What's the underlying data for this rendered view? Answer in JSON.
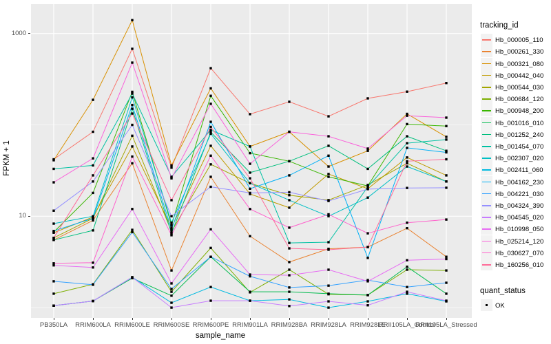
{
  "figure": {
    "background": "#FFFFFF",
    "panel_background": "#EBEBEB",
    "gridline_color": "#FFFFFF",
    "point_color": "#000000"
  },
  "axes": {
    "y_title": "FPKM + 1",
    "x_title": "sample_name",
    "y_tick_labels": [
      "1000",
      "10"
    ],
    "y_tick_values": [
      1000,
      10
    ],
    "y_minor_values": [
      100,
      1
    ]
  },
  "legend": {
    "tracking_title": "tracking_id",
    "quant_title": "quant_status",
    "quant_label": "OK"
  },
  "chart_data": {
    "type": "line",
    "x_type": "categorical",
    "y_scale": "log10",
    "ylabel": "FPKM + 1",
    "xlabel": "sample_name",
    "ylim": [
      0.77,
      2000
    ],
    "y_major_breaks": [
      10,
      1000
    ],
    "y_minor_breaks": [
      1,
      100
    ],
    "grid": true,
    "legend_position": "right",
    "point_marker": "black-square",
    "categories": [
      "PB350LA",
      "RRIM600LA",
      "RRIM600LE",
      "RRIM600SE",
      "RRIM600PE",
      "RRIM901LA",
      "RRIM928BA",
      "RRIM928LA",
      "RRIM928LE",
      "RRII105LA_Control",
      "RRII105LA_Stressed"
    ],
    "values_note": "FPKM + 1, estimated from pixel positions on log scale",
    "series": [
      {
        "name": "Hb_000005_110",
        "color": "#F8766D",
        "values": [
          42,
          84,
          680,
          34,
          417,
          131,
          179,
          124,
          195,
          231,
          287
        ]
      },
      {
        "name": "Hb_000261_330",
        "color": "#EA8331",
        "values": [
          5.5,
          9,
          38,
          2.55,
          27,
          6.05,
          3.15,
          4.4,
          4.6,
          7.4,
          3.6
        ]
      },
      {
        "name": "Hb_000321_080",
        "color": "#D89000",
        "values": [
          41,
          188,
          1400,
          36,
          251,
          58,
          84,
          35,
          52,
          132,
          74
        ]
      },
      {
        "name": "Hb_000442_040",
        "color": "#C09B00",
        "values": [
          6.6,
          9.8,
          58,
          7.5,
          59,
          17.5,
          12.4,
          29,
          20,
          44,
          28
        ]
      },
      {
        "name": "Hb_000544_030",
        "color": "#A3A500",
        "values": [
          5.8,
          9.5,
          76,
          6.8,
          37,
          23,
          17,
          15,
          22,
          38,
          24
        ]
      },
      {
        "name": "Hb_000684_120",
        "color": "#7CAE00",
        "values": [
          1.42,
          1.8,
          7.1,
          1.49,
          4.5,
          1.47,
          2.6,
          1.4,
          1.37,
          2.6,
          2.55
        ]
      },
      {
        "name": "Hb_000948_200",
        "color": "#39B600",
        "values": [
          6.7,
          18,
          230,
          8,
          208,
          49,
          40,
          27,
          21.5,
          102,
          97
        ]
      },
      {
        "name": "Hb_001016_010",
        "color": "#00BB4E",
        "values": [
          1.05,
          1.18,
          2.1,
          1.35,
          3.6,
          1.49,
          1.49,
          1.42,
          1.37,
          2.8,
          1.42
        ]
      },
      {
        "name": "Hb_001252_240",
        "color": "#00BF7D",
        "values": [
          5.5,
          7,
          150,
          6.5,
          83,
          30,
          40,
          59,
          33,
          75,
          52
        ]
      },
      {
        "name": "Hb_001454_070",
        "color": "#00C1A3",
        "values": [
          33,
          36,
          220,
          27,
          88,
          58,
          5.1,
          5.2,
          21,
          63,
          69
        ]
      },
      {
        "name": "Hb_002307_020",
        "color": "#00BFC4",
        "values": [
          8.3,
          10,
          200,
          8.5,
          80,
          23,
          15,
          10,
          16,
          35,
          24
        ]
      },
      {
        "name": "Hb_002411_060",
        "color": "#00BAE0",
        "values": [
          1.05,
          1.18,
          2.15,
          1.13,
          1.68,
          1.19,
          1.23,
          1.0,
          1.17,
          1.42,
          1.17
        ]
      },
      {
        "name": "Hb_004162_230",
        "color": "#00B0F6",
        "values": [
          6.9,
          9.5,
          165,
          7.2,
          108,
          20,
          28,
          46,
          3.5,
          56,
          50
        ]
      },
      {
        "name": "Hb_004221_030",
        "color": "#35A2FF",
        "values": [
          1.94,
          1.78,
          6.7,
          1.6,
          3.6,
          2.2,
          1.66,
          1.74,
          2.0,
          1.68,
          1.87
        ]
      },
      {
        "name": "Hb_004324_390",
        "color": "#9590FF",
        "values": [
          11.5,
          24,
          100,
          10,
          21,
          18,
          18.3,
          14.7,
          19.8,
          20.4,
          20.5
        ]
      },
      {
        "name": "Hb_004545_020",
        "color": "#C77CFF",
        "values": [
          1.05,
          1.18,
          2.15,
          1.0,
          1.19,
          1.19,
          1.04,
          1.17,
          1.06,
          1.49,
          1.19
        ]
      },
      {
        "name": "Hb_010998_050",
        "color": "#E76BF3",
        "values": [
          2.9,
          2.75,
          12,
          1.84,
          7.2,
          2.3,
          2.26,
          2.6,
          1.94,
          3.3,
          3.4
        ]
      },
      {
        "name": "Hb_025214_120",
        "color": "#FA62DB",
        "values": [
          23.5,
          43,
          480,
          26,
          170,
          37.5,
          84,
          75,
          55,
          126,
          120
        ]
      },
      {
        "name": "Hb_030627_070",
        "color": "#FF61CC",
        "values": [
          3.05,
          3.1,
          45,
          6.2,
          46,
          12,
          7.5,
          10.5,
          6.5,
          8.5,
          9.2
        ]
      },
      {
        "name": "Hb_160256_010",
        "color": "#FF6A98",
        "values": [
          5.8,
          28,
          133,
          15,
          95,
          26,
          4.45,
          4.3,
          4.6,
          40,
          42
        ]
      }
    ]
  }
}
